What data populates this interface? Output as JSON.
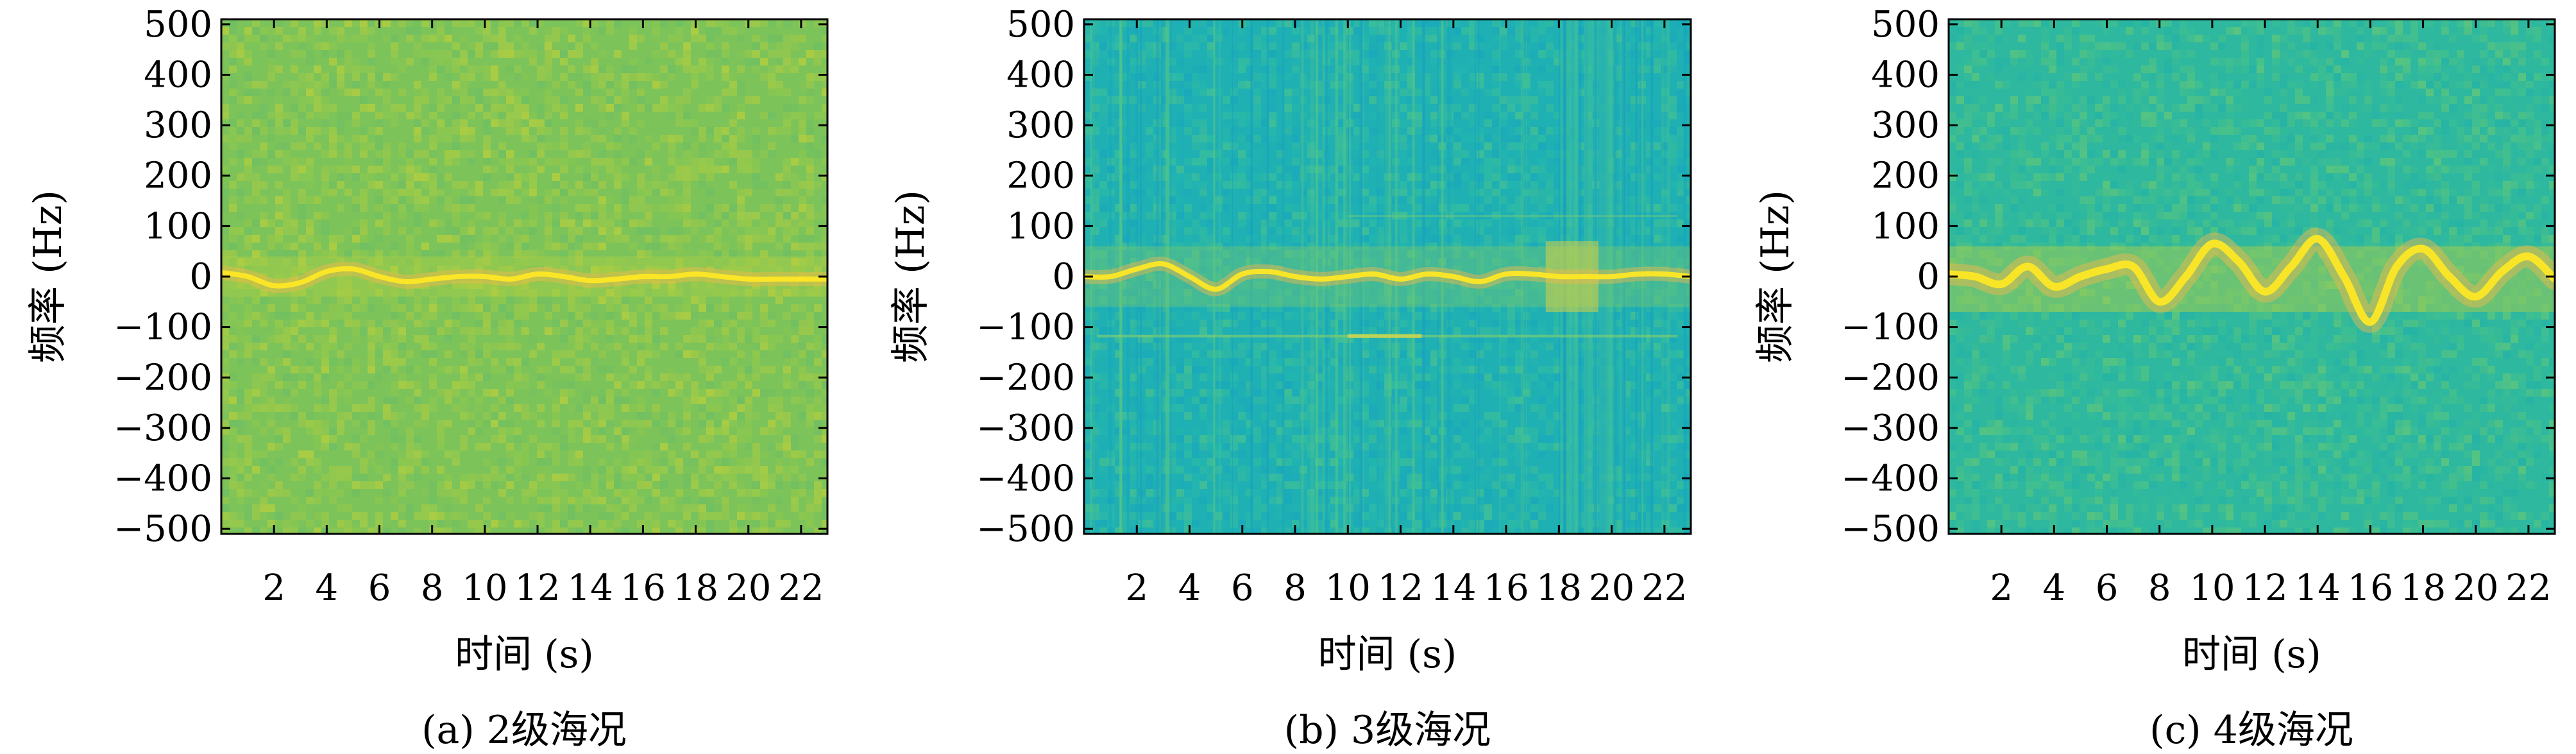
{
  "figure": {
    "captions": [
      "(a) 2级海况",
      "(b) 3级海况",
      "(c) 4级海况"
    ],
    "palette": {
      "background_low": "#1fb5b0",
      "background_mid": "#5fc46e",
      "background_high": "#b9cf3c",
      "ridge": "#fde725",
      "ridge_glow": "#f5b94a",
      "axis": "#000000"
    }
  },
  "chart_data": [
    {
      "type": "heatmap",
      "caption": "(a) 2级海况",
      "xlabel": "时间 (s)",
      "ylabel": "频率 (Hz)",
      "xlim": [
        0,
        23
      ],
      "ylim": [
        -510,
        510
      ],
      "xticks": [
        2,
        4,
        6,
        8,
        10,
        12,
        14,
        16,
        18,
        20,
        22
      ],
      "yticks": [
        500,
        400,
        300,
        200,
        100,
        0,
        -100,
        -200,
        -300,
        -400,
        -500
      ],
      "ytick_labels": [
        "500",
        "400",
        "300",
        "200",
        "100",
        "0",
        "−100",
        "−200",
        "−300",
        "−400",
        "−500"
      ],
      "background": "green-yellow noise",
      "ridge": {
        "x": [
          0,
          1,
          2,
          3,
          4,
          5,
          6,
          7,
          8,
          9,
          10,
          11,
          12,
          13,
          14,
          15,
          16,
          17,
          18,
          19,
          20,
          21,
          22,
          23
        ],
        "y": [
          8,
          0,
          -18,
          -12,
          10,
          15,
          0,
          -10,
          -5,
          0,
          0,
          -5,
          5,
          0,
          -8,
          -5,
          0,
          0,
          5,
          0,
          -5,
          -5,
          -5,
          -5
        ]
      }
    },
    {
      "type": "heatmap",
      "caption": "(b) 3级海况",
      "xlabel": "时间 (s)",
      "ylabel": "频率 (Hz)",
      "xlim": [
        0,
        23
      ],
      "ylim": [
        -510,
        510
      ],
      "xticks": [
        2,
        4,
        6,
        8,
        10,
        12,
        14,
        16,
        18,
        20,
        22
      ],
      "yticks": [
        500,
        400,
        300,
        200,
        100,
        0,
        -100,
        -200,
        -300,
        -400,
        -500
      ],
      "ytick_labels": [
        "500",
        "400",
        "300",
        "200",
        "100",
        "0",
        "−100",
        "−200",
        "−300",
        "−400",
        "−500"
      ],
      "background": "teal with vertical streaks",
      "ridge": {
        "x": [
          0,
          1,
          2,
          3,
          4,
          5,
          6,
          7,
          8,
          9,
          10,
          11,
          12,
          13,
          14,
          15,
          16,
          17,
          18,
          19,
          20,
          21,
          22,
          23
        ],
        "y": [
          0,
          0,
          15,
          25,
          0,
          -25,
          5,
          10,
          0,
          -5,
          0,
          5,
          -5,
          5,
          0,
          -10,
          5,
          5,
          0,
          0,
          0,
          5,
          5,
          0
        ]
      }
    },
    {
      "type": "heatmap",
      "caption": "(c) 4级海况",
      "xlabel": "时间 (s)",
      "ylabel": "频率 (Hz)",
      "xlim": [
        0,
        23
      ],
      "ylim": [
        -510,
        510
      ],
      "xticks": [
        2,
        4,
        6,
        8,
        10,
        12,
        14,
        16,
        18,
        20,
        22
      ],
      "yticks": [
        500,
        400,
        300,
        200,
        100,
        0,
        -100,
        -200,
        -300,
        -400,
        -500
      ],
      "ytick_labels": [
        "500",
        "400",
        "300",
        "200",
        "100",
        "0",
        "−100",
        "−200",
        "−300",
        "−400",
        "−500"
      ],
      "background": "teal-green noise",
      "ridge": {
        "x": [
          0,
          1,
          2,
          3,
          4,
          5,
          6,
          7,
          8,
          9,
          10,
          11,
          12,
          13,
          14,
          15,
          16,
          17,
          18,
          19,
          20,
          21,
          22,
          23
        ],
        "y": [
          5,
          0,
          -15,
          20,
          -20,
          0,
          15,
          20,
          -50,
          0,
          65,
          30,
          -30,
          20,
          75,
          0,
          -90,
          20,
          55,
          0,
          -40,
          10,
          40,
          -5
        ]
      }
    }
  ]
}
